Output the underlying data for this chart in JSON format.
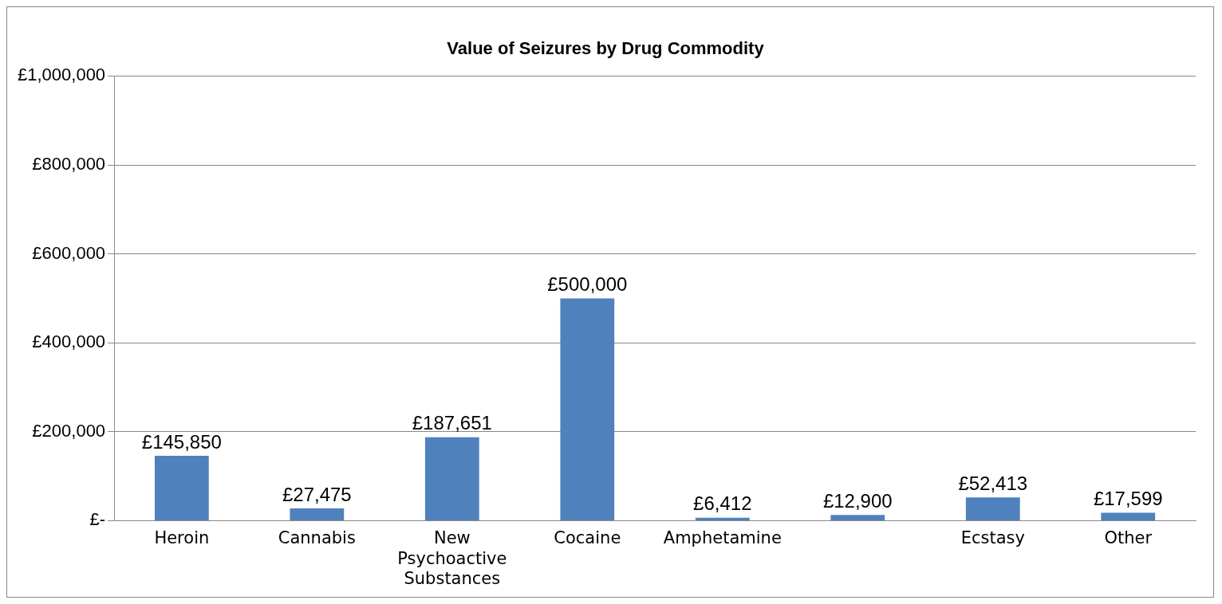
{
  "chart_data": {
    "type": "bar",
    "title": "Value of Seizures by Drug Commodity",
    "categories": [
      "Heroin",
      "Cannabis",
      "New Psychoactive Substances",
      "Cocaine",
      "Amphetamine",
      null,
      "Ecstasy",
      "Other"
    ],
    "values": [
      145850,
      27475,
      187651,
      500000,
      6412,
      12900,
      52413,
      17599
    ],
    "value_labels": [
      "£145,850",
      "£27,475",
      "£187,651",
      "£500,000",
      "£6,412",
      "£12,900",
      "£52,413",
      "£17,599"
    ],
    "color": "#4f81bd",
    "ylim": [
      0,
      1000000
    ],
    "yticks": [
      {
        "value": 0,
        "label": "£-"
      },
      {
        "value": 200000,
        "label": "£200,000"
      },
      {
        "value": 400000,
        "label": "£400,000"
      },
      {
        "value": 600000,
        "label": "£600,000"
      },
      {
        "value": 800000,
        "label": "£800,000"
      },
      {
        "value": 1000000,
        "label": "£1,000,000"
      }
    ],
    "grid": "y",
    "legend": false
  }
}
